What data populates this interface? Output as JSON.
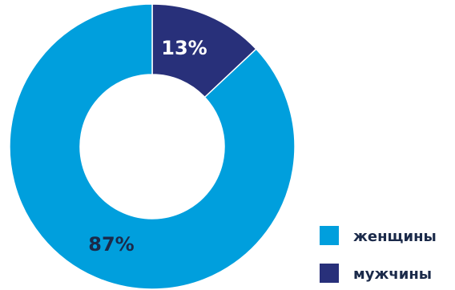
{
  "chart_data": {
    "type": "pie",
    "style": "donut",
    "slices": [
      {
        "label": "мужчины",
        "value": 13,
        "display": "13%",
        "color": "#28307a"
      },
      {
        "label": "женщины",
        "value": 87,
        "display": "87%",
        "color": "#009fdd"
      }
    ],
    "legend": {
      "placement": "bottom-right",
      "items": [
        {
          "label": "женщины",
          "color": "#009fdd"
        },
        {
          "label": "мужчины",
          "color": "#28307a"
        }
      ]
    },
    "title": ""
  }
}
